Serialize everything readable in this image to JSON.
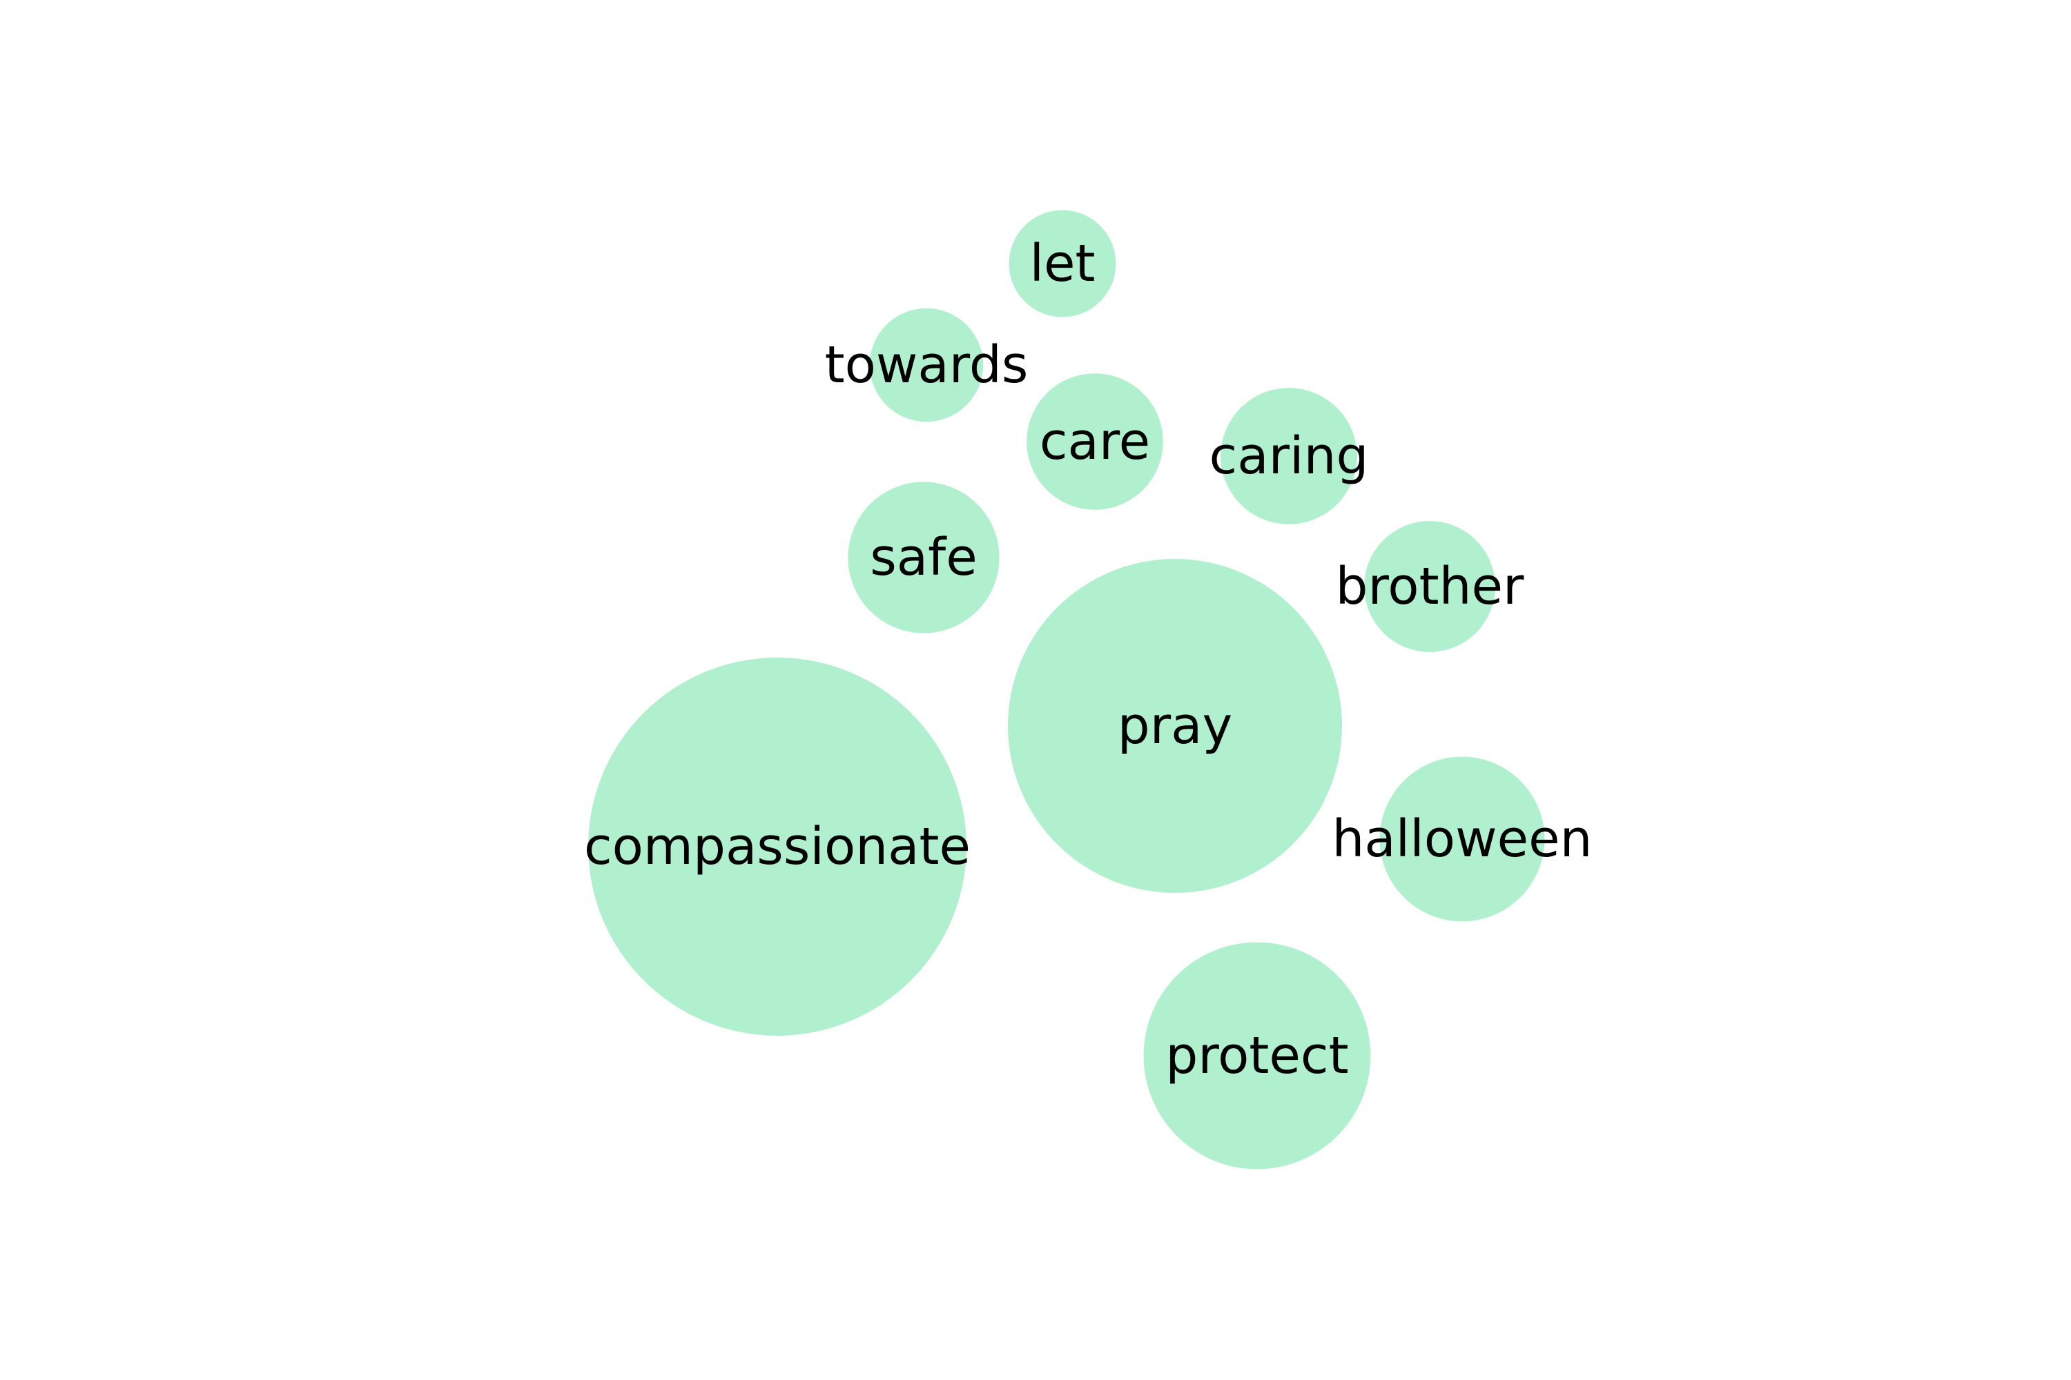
{
  "chart_data": {
    "type": "bubble",
    "bubble_color": "#b0f0ce",
    "label_color": "#000000",
    "bubbles": [
      {
        "label": "compassionate",
        "value": 100
      },
      {
        "label": "pray",
        "value": 78
      },
      {
        "label": "protect",
        "value": 36
      },
      {
        "label": "halloween",
        "value": 19
      },
      {
        "label": "safe",
        "value": 16
      },
      {
        "label": "care",
        "value": 13
      },
      {
        "label": "caring",
        "value": 13
      },
      {
        "label": "brother",
        "value": 12
      },
      {
        "label": "towards",
        "value": 9
      },
      {
        "label": "let",
        "value": 8
      }
    ]
  }
}
